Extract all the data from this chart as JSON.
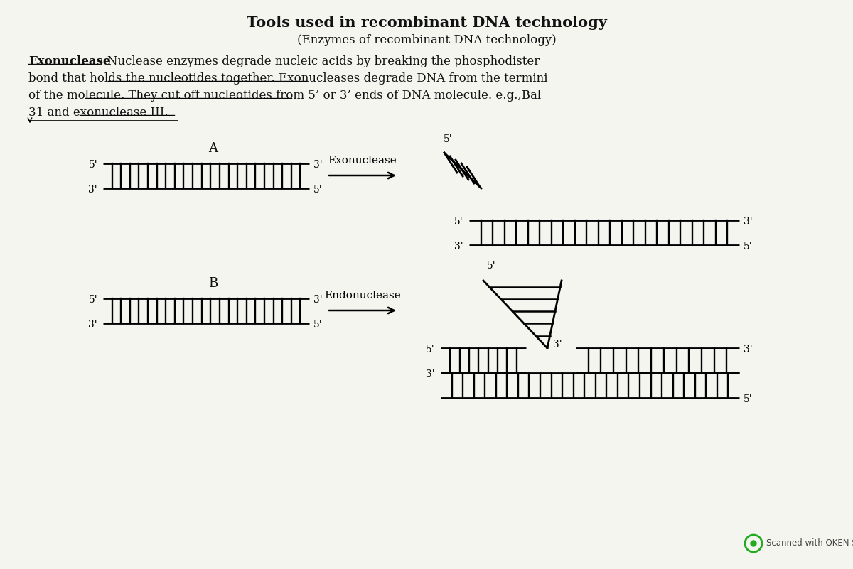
{
  "title": "Tools used in recombinant DNA technology",
  "subtitle": "(Enzymes of recombinant DNA technology)",
  "para_line1": "Exonuclease: Nuclease enzymes degrade nucleic acids by breaking the phosphodister",
  "para_line2": "bond that holds the nucleotides together. Exonucleases degrade DNA from the termini",
  "para_line3": "of the molecule. They cut off nucleotides from 5’ or 3’ ends of DNA molecule. e.g.,Bal",
  "para_line4": "31 and exonuclease III.",
  "bold_word": "Exonuclease",
  "background": "#f5f5f0",
  "text_color": "#111111",
  "label_A": "A",
  "label_B": "B",
  "exonuclease_label": "Exonuclease",
  "endonuclease_label": "Endonuclease",
  "scanner_text": "Scanned with OKEN Scanner"
}
